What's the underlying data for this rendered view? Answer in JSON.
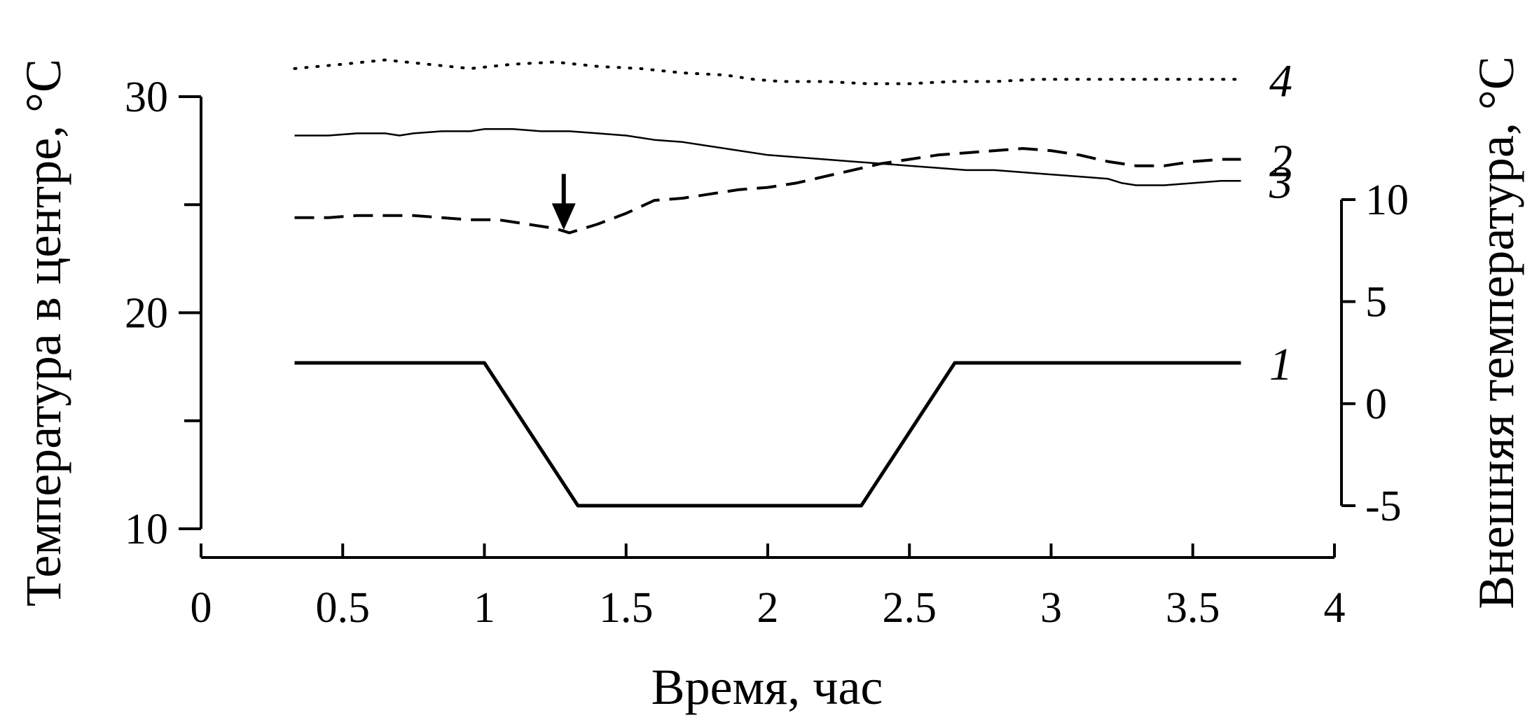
{
  "chart_data": {
    "type": "line",
    "title": "",
    "xlabel": "Время, час",
    "ylabel": "Температура в центре, °С",
    "y2label": "Внешняя температура, °С",
    "xlim": [
      0,
      4
    ],
    "ylim": [
      10,
      30
    ],
    "y2lim": [
      -5,
      10
    ],
    "grid": false,
    "x_ticks": [
      "0",
      "0.5",
      "1",
      "1.5",
      "2",
      "2.5",
      "3",
      "3.5",
      "4"
    ],
    "x_tick_values": [
      0,
      0.5,
      1,
      1.5,
      2,
      2.5,
      3,
      3.5,
      4
    ],
    "y_ticks": [
      "10",
      "20",
      "30"
    ],
    "y_tick_values": [
      10,
      20,
      30
    ],
    "y_minor_tick_values": [
      15,
      25
    ],
    "y2_ticks": [
      "-5",
      "0",
      "5",
      "10"
    ],
    "y2_tick_values": [
      -5,
      0,
      5,
      10
    ],
    "series": [
      {
        "name": "1",
        "axis": "right",
        "style": "solid-thick",
        "x": [
          0.33,
          1.0,
          1.33,
          2.33,
          2.66,
          3.67
        ],
        "y": [
          2,
          2,
          -5,
          -5,
          2,
          2
        ]
      },
      {
        "name": "2",
        "axis": "left",
        "style": "dashed",
        "x": [
          0.33,
          0.45,
          0.55,
          0.65,
          0.75,
          0.85,
          0.95,
          1.05,
          1.15,
          1.25,
          1.3,
          1.4,
          1.5,
          1.6,
          1.7,
          1.8,
          1.9,
          2.0,
          2.1,
          2.2,
          2.3,
          2.4,
          2.5,
          2.6,
          2.7,
          2.8,
          2.9,
          3.0,
          3.1,
          3.2,
          3.3,
          3.4,
          3.5,
          3.6,
          3.67
        ],
        "y": [
          24.4,
          24.4,
          24.5,
          24.5,
          24.5,
          24.4,
          24.3,
          24.3,
          24.1,
          23.9,
          23.7,
          24.1,
          24.6,
          25.2,
          25.3,
          25.5,
          25.7,
          25.8,
          26.0,
          26.3,
          26.6,
          26.9,
          27.1,
          27.3,
          27.4,
          27.5,
          27.6,
          27.5,
          27.3,
          27.0,
          26.8,
          26.8,
          27.0,
          27.1,
          27.1
        ]
      },
      {
        "name": "3",
        "axis": "left",
        "style": "solid-thin",
        "x": [
          0.33,
          0.45,
          0.55,
          0.65,
          0.7,
          0.75,
          0.85,
          0.95,
          1.0,
          1.1,
          1.2,
          1.3,
          1.4,
          1.5,
          1.6,
          1.7,
          1.8,
          1.9,
          2.0,
          2.1,
          2.2,
          2.3,
          2.4,
          2.5,
          2.6,
          2.7,
          2.8,
          2.9,
          3.0,
          3.1,
          3.2,
          3.25,
          3.3,
          3.4,
          3.5,
          3.6,
          3.67
        ],
        "y": [
          28.2,
          28.2,
          28.3,
          28.3,
          28.2,
          28.3,
          28.4,
          28.4,
          28.5,
          28.5,
          28.4,
          28.4,
          28.3,
          28.2,
          28.0,
          27.9,
          27.7,
          27.5,
          27.3,
          27.2,
          27.1,
          27.0,
          26.9,
          26.8,
          26.7,
          26.6,
          26.6,
          26.5,
          26.4,
          26.3,
          26.2,
          26.0,
          25.9,
          25.9,
          26.0,
          26.1,
          26.1
        ]
      },
      {
        "name": "4",
        "axis": "left",
        "style": "dotted",
        "x": [
          0.33,
          0.5,
          0.65,
          0.8,
          0.95,
          1.1,
          1.25,
          1.4,
          1.55,
          1.7,
          1.85,
          1.95,
          2.05,
          2.2,
          2.35,
          2.5,
          2.65,
          2.8,
          2.95,
          3.1,
          3.25,
          3.4,
          3.55,
          3.67
        ],
        "y": [
          31.3,
          31.5,
          31.7,
          31.5,
          31.3,
          31.5,
          31.6,
          31.4,
          31.3,
          31.1,
          31.0,
          30.8,
          30.7,
          30.7,
          30.6,
          30.6,
          30.7,
          30.7,
          30.8,
          30.8,
          30.8,
          30.8,
          30.8,
          30.8
        ]
      }
    ],
    "annotations": [
      {
        "type": "arrow-down",
        "x": 1.28,
        "y": 23.7
      }
    ]
  }
}
